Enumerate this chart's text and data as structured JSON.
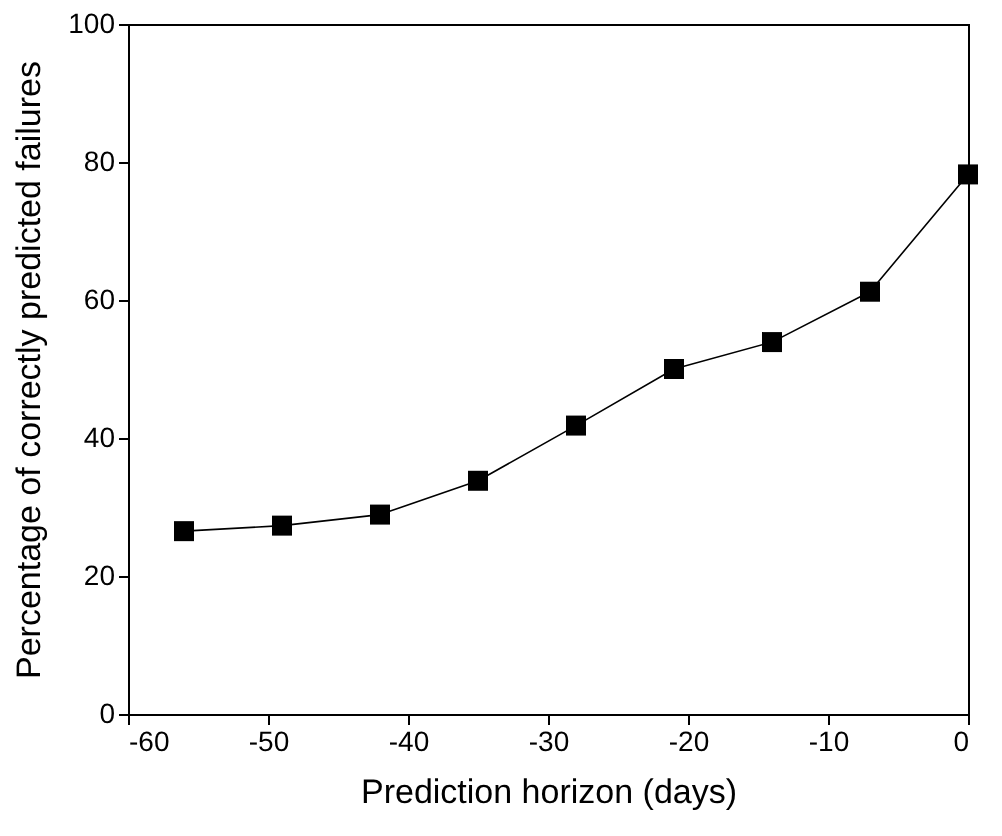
{
  "chart_data": {
    "type": "line",
    "xlabel": "Prediction horizon (days)",
    "ylabel": "Percentage of correctly predicted failures",
    "x": [
      -56,
      -49,
      -42,
      -35,
      -28,
      -21,
      -14,
      -7,
      0
    ],
    "series": [
      {
        "color": "#000000",
        "values": [
          26.5,
          27.3,
          28.9,
          33.8,
          41.8,
          50.0,
          53.9,
          61.2,
          78.2
        ]
      }
    ],
    "xlim": [
      -60,
      0
    ],
    "xticks": [
      -60,
      -50,
      -40,
      -30,
      -20,
      -10,
      0
    ],
    "ylim": [
      0,
      100
    ],
    "yticks": [
      0,
      20,
      40,
      60,
      80,
      100
    ],
    "grid": false,
    "marker": "square",
    "line_style": "solid"
  }
}
